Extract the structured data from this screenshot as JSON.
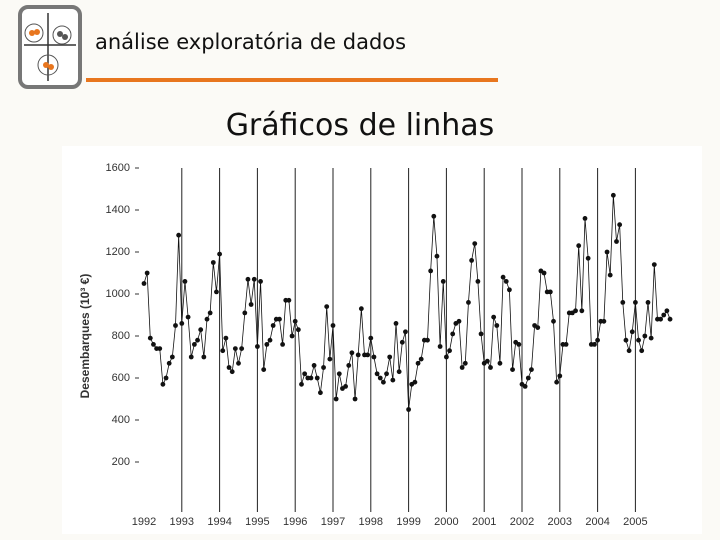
{
  "header": {
    "title": "análise exploratória de dados"
  },
  "slide_title": "Gráficos de linhas",
  "chart_data": {
    "type": "line",
    "y_label": "Desembarques (10³ €)",
    "categories": [
      "1992",
      null,
      null,
      null,
      null,
      null,
      null,
      null,
      null,
      null,
      null,
      null,
      "1993",
      null,
      null,
      null,
      null,
      null,
      null,
      null,
      null,
      null,
      null,
      null,
      "1994",
      null,
      null,
      null,
      null,
      null,
      null,
      null,
      null,
      null,
      null,
      null,
      "1995",
      null,
      null,
      null,
      null,
      null,
      null,
      null,
      null,
      null,
      null,
      null,
      "1996",
      null,
      null,
      null,
      null,
      null,
      null,
      null,
      null,
      null,
      null,
      null,
      "1997",
      null,
      null,
      null,
      null,
      null,
      null,
      null,
      null,
      null,
      null,
      null,
      "1998",
      null,
      null,
      null,
      null,
      null,
      null,
      null,
      null,
      null,
      null,
      null,
      "1999",
      null,
      null,
      null,
      null,
      null,
      null,
      null,
      null,
      null,
      null,
      null,
      "2000",
      null,
      null,
      null,
      null,
      null,
      null,
      null,
      null,
      null,
      null,
      null,
      "2001",
      null,
      null,
      null,
      null,
      null,
      null,
      null,
      null,
      null,
      null,
      null,
      "2002",
      null,
      null,
      null,
      null,
      null,
      null,
      null,
      null,
      null,
      null,
      null,
      "2003",
      null,
      null,
      null,
      null,
      null,
      null,
      null,
      null,
      null,
      null,
      null,
      "2004",
      null,
      null,
      null,
      null,
      null,
      null,
      null,
      null,
      null,
      null,
      null,
      "2005",
      null,
      null,
      null,
      null,
      null,
      null,
      null,
      null,
      null,
      null,
      null
    ],
    "values": [
      1050,
      1100,
      790,
      760,
      740,
      740,
      570,
      600,
      670,
      700,
      850,
      1280,
      860,
      1060,
      890,
      700,
      760,
      780,
      830,
      700,
      880,
      910,
      1150,
      1010,
      1190,
      730,
      790,
      650,
      630,
      740,
      670,
      740,
      910,
      1070,
      950,
      1070,
      750,
      1060,
      640,
      760,
      780,
      850,
      880,
      880,
      760,
      970,
      970,
      800,
      870,
      830,
      570,
      620,
      600,
      600,
      660,
      600,
      530,
      650,
      940,
      690,
      850,
      500,
      620,
      550,
      560,
      660,
      720,
      500,
      710,
      930,
      710,
      710,
      790,
      700,
      620,
      600,
      580,
      620,
      700,
      590,
      860,
      630,
      770,
      820,
      450,
      570,
      580,
      670,
      690,
      780,
      780,
      1110,
      1370,
      1180,
      750,
      1060,
      700,
      730,
      810,
      860,
      870,
      650,
      670,
      960,
      1160,
      1240,
      1060,
      810,
      670,
      680,
      650,
      890,
      850,
      670,
      1080,
      1060,
      1020,
      640,
      770,
      760,
      570,
      560,
      600,
      640,
      850,
      840,
      1110,
      1100,
      1010,
      1010,
      870,
      580,
      610,
      760,
      760,
      910,
      910,
      920,
      1230,
      920,
      1360,
      1170,
      760,
      760,
      780,
      870,
      870,
      1200,
      1090,
      1470,
      1250,
      1330,
      960,
      780,
      730,
      820,
      960,
      780,
      730,
      800,
      960,
      790,
      1140,
      880,
      880,
      900,
      920,
      880
    ],
    "color": "#111111",
    "ylim": [
      0,
      1600
    ],
    "yticks": [
      200,
      400,
      600,
      800,
      1000,
      1200,
      1400,
      1600
    ]
  }
}
